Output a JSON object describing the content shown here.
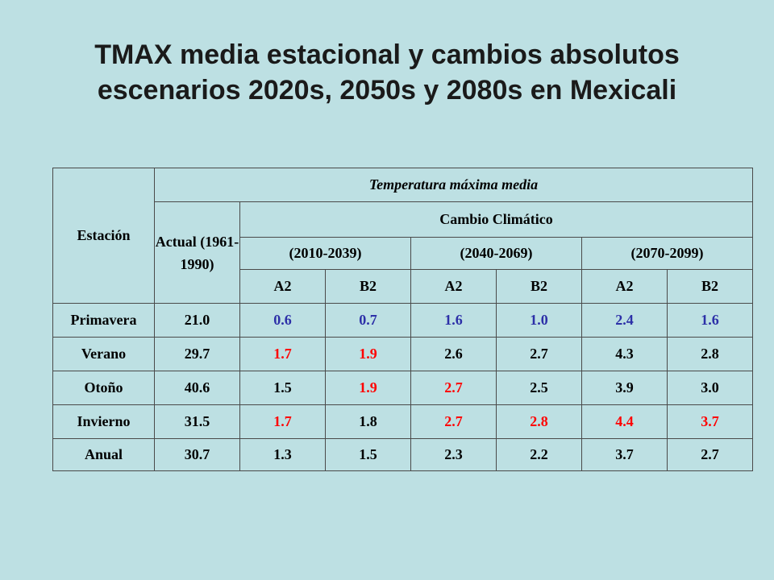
{
  "title": "TMAX media estacional y cambios absolutos escenarios 2020s, 2050s y 2080s en Mexicali",
  "table": {
    "station_header": "Estación",
    "group_header": "Temperatura máxima media",
    "actual_header": "Actual (1961-1990)",
    "climate_change_header": "Cambio Climático",
    "periods": [
      "(2010-2039)",
      "(2040-2069)",
      "(2070-2099)"
    ],
    "scenarios": [
      "A2",
      "B2",
      "A2",
      "B2",
      "A2",
      "B2"
    ],
    "rows": [
      {
        "label": "Primavera",
        "actual": "21.0",
        "values": [
          "0.6",
          "0.7",
          "1.6",
          "1.0",
          "2.4",
          "1.6"
        ]
      },
      {
        "label": "Verano",
        "actual": "29.7",
        "values": [
          "1.7",
          "1.9",
          "2.6",
          "2.7",
          "4.3",
          "2.8"
        ]
      },
      {
        "label": "Otoño",
        "actual": "40.6",
        "values": [
          "1.5",
          "1.9",
          "2.7",
          "2.5",
          "3.9",
          "3.0"
        ]
      },
      {
        "label": "Invierno",
        "actual": "31.5",
        "values": [
          "1.7",
          "1.8",
          "2.7",
          "2.8",
          "4.4",
          "3.7"
        ]
      },
      {
        "label": "Anual",
        "actual": "30.7",
        "values": [
          "1.3",
          "1.5",
          "2.3",
          "2.2",
          "3.7",
          "2.7"
        ]
      }
    ],
    "colors": {
      "period_2010_2039": "#8a8a8a",
      "period_2040_2069": "#dbaef2",
      "period_2070_2099": "#a0ffb0",
      "annual_label": "#ff0000",
      "annual_yellow": "#f0f5a8",
      "annual_green": "#8fc800",
      "text_blue": "#2d30a8",
      "text_red": "#ff0000"
    }
  }
}
